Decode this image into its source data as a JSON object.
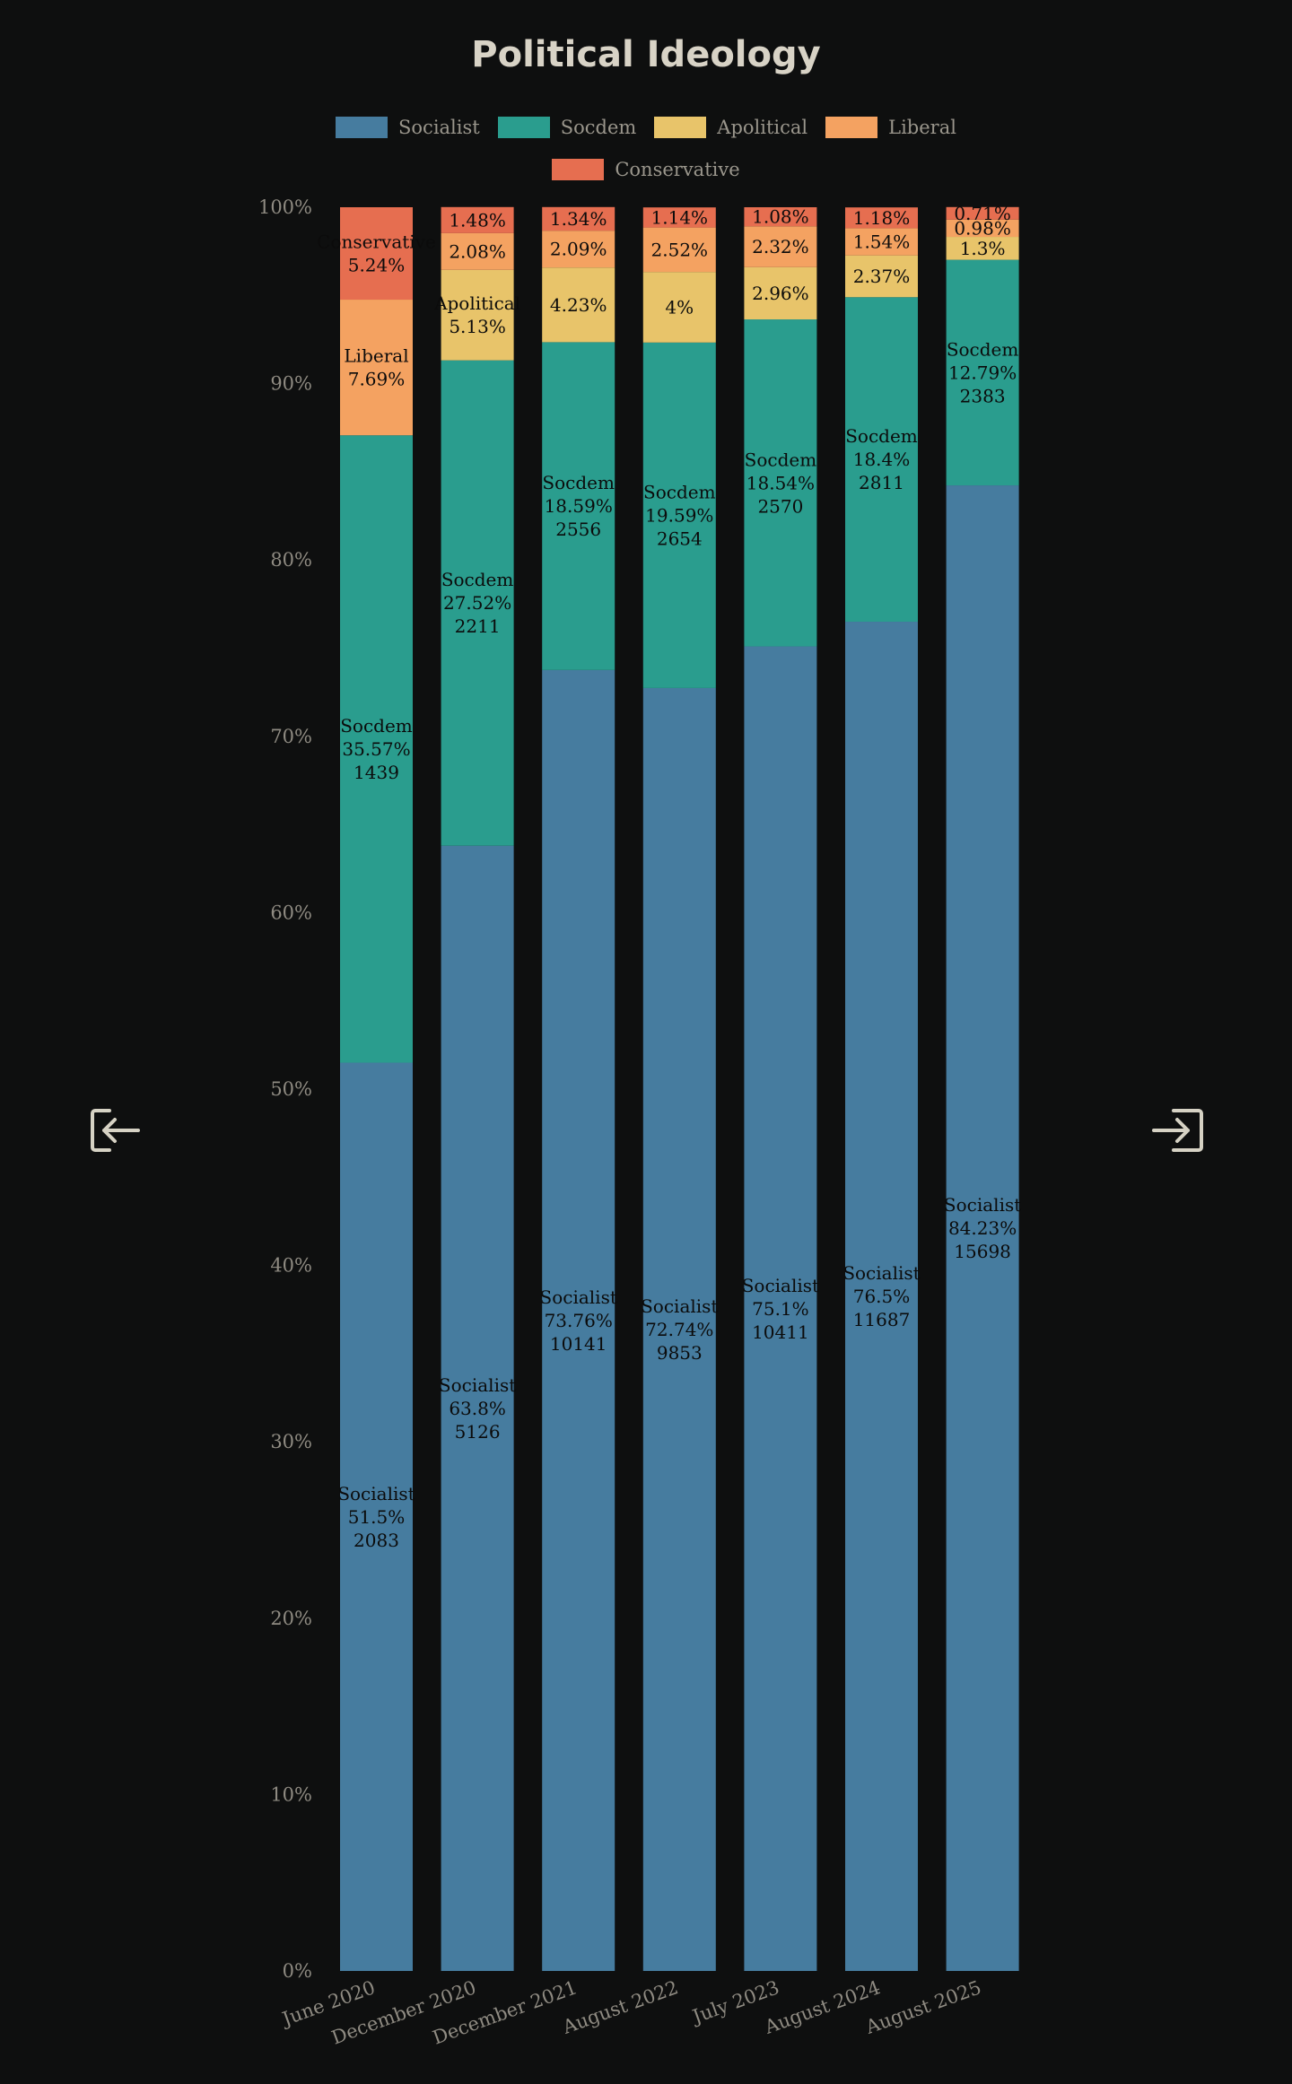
{
  "title": "Political Ideology",
  "colors": {
    "Socialist": "#467c9f",
    "Socdem": "#2a9d8e",
    "Apolitical": "#e8c46a",
    "Liberal": "#f4a261",
    "Conservative": "#e66e50",
    "axis_text": "#8f8b82",
    "label_text": "#0b0b0b"
  },
  "legend": [
    "Socialist",
    "Socdem",
    "Apolitical",
    "Liberal",
    "Conservative"
  ],
  "icons": {
    "prev": "exit-left-icon",
    "next": "enter-right-icon"
  },
  "chart_data": {
    "type": "bar",
    "stacked": true,
    "categories": [
      "June 2020",
      "December 2020",
      "December 2021",
      "August 2022",
      "July 2023",
      "August 2024",
      "August 2025"
    ],
    "yticks": [
      "0%",
      "10%",
      "20%",
      "30%",
      "40%",
      "50%",
      "60%",
      "70%",
      "80%",
      "90%",
      "100%"
    ],
    "ylim": [
      0,
      100
    ],
    "legend_position": "top",
    "series": [
      {
        "name": "Socialist",
        "values": [
          51.5,
          63.8,
          73.76,
          72.74,
          75.1,
          76.5,
          84.23
        ],
        "counts": [
          "2083",
          "5126",
          "10141",
          "9853",
          "10411",
          "11687",
          "15698"
        ]
      },
      {
        "name": "Socdem",
        "values": [
          35.57,
          27.52,
          18.59,
          19.59,
          18.54,
          18.4,
          12.79
        ],
        "counts": [
          "1439",
          "2211",
          "2556",
          "2654",
          "2570",
          "2811",
          "2383"
        ]
      },
      {
        "name": "Apolitical",
        "values": [
          0,
          5.13,
          4.23,
          4,
          2.96,
          2.37,
          1.3
        ],
        "counts": []
      },
      {
        "name": "Liberal",
        "values": [
          7.69,
          2.08,
          2.09,
          2.52,
          2.32,
          1.54,
          0.98
        ],
        "counts": []
      },
      {
        "name": "Conservative",
        "values": [
          5.24,
          1.48,
          1.34,
          1.14,
          1.08,
          1.18,
          0.71
        ],
        "counts": []
      }
    ],
    "labels": [
      [
        [
          "Socialist",
          "51.5%",
          "2083"
        ],
        [
          "Socdem",
          "35.57%",
          "1439"
        ],
        null,
        [
          "Liberal",
          "7.69%"
        ],
        [
          "Conservative",
          "5.24%"
        ]
      ],
      [
        [
          "Socialist",
          "63.8%",
          "5126"
        ],
        [
          "Socdem",
          "27.52%",
          "2211"
        ],
        [
          "Apolitical",
          "5.13%"
        ],
        [
          "2.08%"
        ],
        [
          "1.48%"
        ]
      ],
      [
        [
          "Socialist",
          "73.76%",
          "10141"
        ],
        [
          "Socdem",
          "18.59%",
          "2556"
        ],
        [
          "4.23%"
        ],
        [
          "2.09%"
        ],
        [
          "1.34%"
        ]
      ],
      [
        [
          "Socialist",
          "72.74%",
          "9853"
        ],
        [
          "Socdem",
          "19.59%",
          "2654"
        ],
        [
          "4%"
        ],
        [
          "2.52%"
        ],
        [
          "1.14%"
        ]
      ],
      [
        [
          "Socialist",
          "75.1%",
          "10411"
        ],
        [
          "Socdem",
          "18.54%",
          "2570"
        ],
        [
          "2.96%"
        ],
        [
          "2.32%"
        ],
        [
          "1.08%"
        ]
      ],
      [
        [
          "Socialist",
          "76.5%",
          "11687"
        ],
        [
          "Socdem",
          "18.4%",
          "2811"
        ],
        [
          "2.37%"
        ],
        [
          "1.54%"
        ],
        [
          "1.18%"
        ]
      ],
      [
        [
          "Socialist",
          "84.23%",
          "15698"
        ],
        [
          "Socdem",
          "12.79%",
          "2383"
        ],
        [
          "1.3%"
        ],
        [
          "0.98%"
        ],
        [
          "0.71%"
        ]
      ]
    ]
  }
}
